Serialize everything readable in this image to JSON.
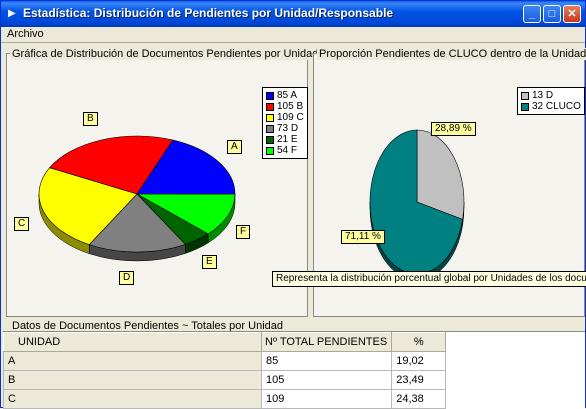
{
  "window": {
    "title": "Estadística: Distribución de Pendientes por Unidad/Responsable",
    "icon": "app-icon",
    "buttons": {
      "minimize": "_",
      "maximize": "□",
      "close": "✕"
    }
  },
  "menu": {
    "items": [
      "Archivo"
    ]
  },
  "left_chart": {
    "label": "Gráfica de Distribución de Documentos Pendientes por Unidad",
    "slice_labels": [
      "A",
      "B",
      "C",
      "D",
      "E",
      "F"
    ],
    "legend": [
      "85 A",
      "105 B",
      "109 C",
      "73 D",
      "21 E",
      "54 F"
    ]
  },
  "right_chart": {
    "label": "Proporción Pendientes de CLUCO dentro de la Unidad D",
    "legend": [
      "13 D",
      "32 CLUCO"
    ],
    "slice_labels": [
      "28,89 %",
      "71,11 %"
    ]
  },
  "tooltip": "Representa la distribución  porcentual global por Unidades de los documentos pen",
  "grid": {
    "label": "Datos de Documentos Pendientes ~ Totales por Unidad",
    "headers": [
      "UNIDAD",
      "Nº TOTAL PENDIENTES",
      "%"
    ],
    "rows": [
      [
        "A",
        "85",
        "19,02"
      ],
      [
        "B",
        "105",
        "23,49"
      ],
      [
        "C",
        "109",
        "24,38"
      ]
    ]
  },
  "colors": {
    "A": "#0000FF",
    "B": "#FF0000",
    "C": "#FFFF00",
    "D": "#808080",
    "E": "#006400",
    "F": "#00FF00",
    "cluco": "#008080",
    "d_part": "#C0C0C0",
    "titlebar": "#0055E5"
  },
  "chart_data": [
    {
      "type": "pie",
      "categories": [
        "A",
        "B",
        "C",
        "D",
        "E",
        "F"
      ],
      "values": [
        85,
        105,
        109,
        73,
        21,
        54
      ],
      "title": "Gráfica de Distribución de Documentos Pendientes por Unidad",
      "legend": "right"
    },
    {
      "type": "pie",
      "categories": [
        "D",
        "CLUCO"
      ],
      "values": [
        13,
        32
      ],
      "percentages": [
        28.89,
        71.11
      ],
      "title": "Proporción Pendientes de CLUCO dentro de la Unidad D",
      "legend": "top-right"
    }
  ]
}
